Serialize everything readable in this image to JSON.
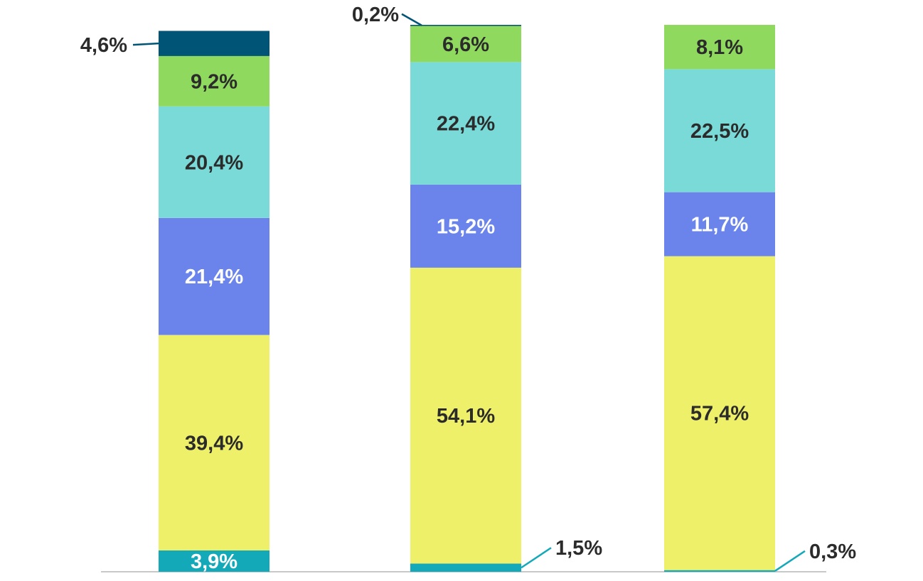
{
  "chart_data": {
    "type": "bar",
    "stacked": true,
    "categories": [
      "",
      "",
      ""
    ],
    "series": [
      {
        "values": [
          3.9,
          1.5,
          0.3
        ],
        "labels": [
          "3,9%",
          "1,5%",
          "0,3%"
        ],
        "color": "#14a9b8"
      },
      {
        "values": [
          39.4,
          54.1,
          57.4
        ],
        "labels": [
          "39,4%",
          "54,1%",
          "57,4%"
        ],
        "color": "#eff06a"
      },
      {
        "values": [
          21.4,
          15.2,
          11.7
        ],
        "labels": [
          "21,4%",
          "15,2%",
          "11,7%"
        ],
        "color": "#6a84ec"
      },
      {
        "values": [
          20.4,
          22.4,
          22.5
        ],
        "labels": [
          "20,4%",
          "22,4%",
          "22,5%"
        ],
        "color": "#79dad8"
      },
      {
        "values": [
          9.2,
          6.6,
          8.1
        ],
        "labels": [
          "9,2%",
          "6,6%",
          "8,1%"
        ],
        "color": "#8fd95e"
      },
      {
        "values": [
          4.6,
          0.2,
          0
        ],
        "labels": [
          "4,6%",
          "0,2%",
          ""
        ],
        "color": "#005576"
      }
    ],
    "ylim": [
      0,
      100
    ],
    "grid": false,
    "legend": "none",
    "label_colors": {
      "dark": "#2b2b2b",
      "light": "#ffffff"
    }
  }
}
